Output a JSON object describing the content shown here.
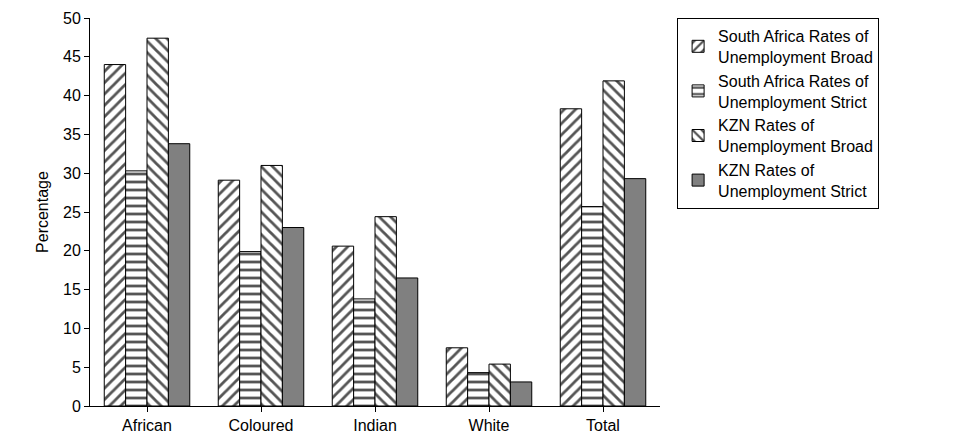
{
  "chart_data": {
    "type": "bar",
    "y_label": "Percentage",
    "categories": [
      "African",
      "Coloured",
      "Indian",
      "White",
      "Total"
    ],
    "series": [
      {
        "name": "South Africa Rates of Unemployment Broad",
        "color": "#555555",
        "marker": "diagonal",
        "values": [
          44.0,
          29.1,
          20.6,
          7.5,
          38.3
        ]
      },
      {
        "name": "South Africa Rates of Unemployment Strict",
        "color": "#555555",
        "marker": "horizontal",
        "values": [
          30.3,
          19.9,
          13.8,
          4.3,
          25.7
        ]
      },
      {
        "name": "KZN Rates of Unemployment Broad",
        "color": "#555555",
        "marker": "antidiagonal",
        "values": [
          47.4,
          31.0,
          24.4,
          5.4,
          41.9
        ]
      },
      {
        "name": "KZN Rates of Unemployment Strict",
        "color": "#808080",
        "marker": "solid",
        "values": [
          33.8,
          23.0,
          16.5,
          3.1,
          29.3
        ]
      }
    ],
    "ylim": [
      0,
      50
    ],
    "yticks": [
      0,
      5,
      10,
      15,
      20,
      25,
      30,
      35,
      40,
      45,
      50
    ],
    "grid": false,
    "legend": "right"
  }
}
